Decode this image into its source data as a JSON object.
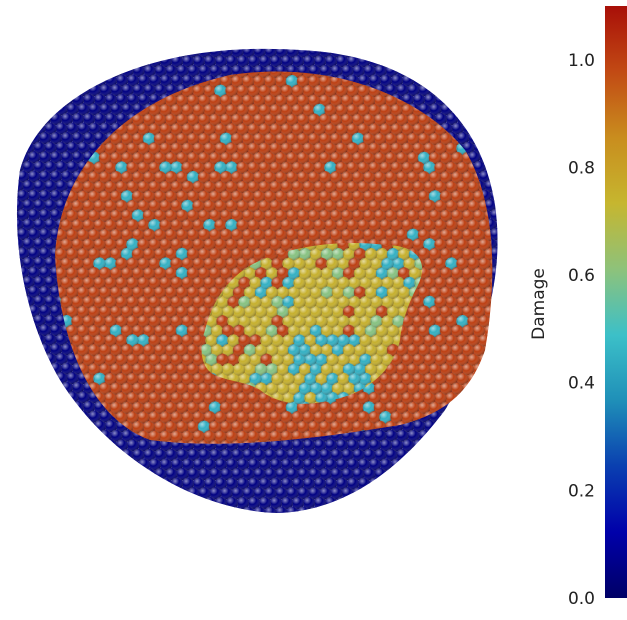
{
  "chart_data": {
    "type": "scatter",
    "description_kind": "3D particle cloud colored by damage value",
    "colorbar": {
      "label": "Damage",
      "range": [
        0.0,
        1.1
      ],
      "ticks": [
        0.0,
        0.2,
        0.4,
        0.6,
        0.8,
        1.0
      ],
      "tick_labels": [
        "0.0",
        "0.2",
        "0.4",
        "0.6",
        "0.8",
        "1.0"
      ],
      "colormap": [
        "#000066",
        "#0000aa",
        "#0a3fb0",
        "#1f8fb8",
        "#3cc0c8",
        "#8ec27a",
        "#c6b62f",
        "#c98d1e",
        "#c24a14",
        "#a80f08"
      ]
    },
    "particle_groups": [
      {
        "region": "outer shell",
        "damage": 0.05
      },
      {
        "region": "main body",
        "damage": 1.0
      },
      {
        "region": "central patch",
        "damage": 0.75
      },
      {
        "region": "patch highlights",
        "damage": 0.45
      }
    ],
    "grid": false
  }
}
